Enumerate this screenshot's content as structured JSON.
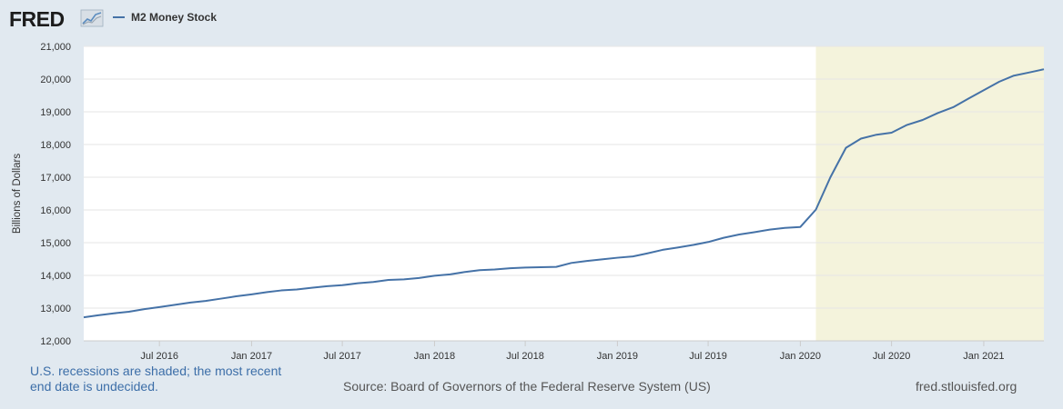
{
  "brand": {
    "logo_text": "FRED"
  },
  "colors": {
    "series": "#4572a7",
    "recession": "#f4f3dc",
    "background": "#e1e9f0",
    "plot": "#ffffff",
    "grid": "#e6e6e6"
  },
  "footer": {
    "note_line1": "U.S. recessions are shaded; the most recent",
    "note_line2": "end date is undecided.",
    "source": "Source: Board of Governors of the Federal Reserve System (US)",
    "site": "fred.stlouisfed.org"
  },
  "chart_data": {
    "type": "line",
    "title": "",
    "ylabel": "Billions of Dollars",
    "xlabel": "",
    "ylim": [
      12000,
      21000
    ],
    "xlim": [
      "2016-02-01",
      "2021-05-01"
    ],
    "yticks": [
      12000,
      13000,
      14000,
      15000,
      16000,
      17000,
      18000,
      19000,
      20000,
      21000
    ],
    "ytick_labels": [
      "12,000",
      "13,000",
      "14,000",
      "15,000",
      "16,000",
      "17,000",
      "18,000",
      "19,000",
      "20,000",
      "21,000"
    ],
    "xticks": [
      {
        "date": "2016-07-01",
        "label": "Jul 2016"
      },
      {
        "date": "2017-01-01",
        "label": "Jan 2017"
      },
      {
        "date": "2017-07-01",
        "label": "Jul 2017"
      },
      {
        "date": "2018-01-01",
        "label": "Jan 2018"
      },
      {
        "date": "2018-07-01",
        "label": "Jul 2018"
      },
      {
        "date": "2019-01-01",
        "label": "Jan 2019"
      },
      {
        "date": "2019-07-01",
        "label": "Jul 2019"
      },
      {
        "date": "2020-01-01",
        "label": "Jan 2020"
      },
      {
        "date": "2020-07-01",
        "label": "Jul 2020"
      },
      {
        "date": "2021-01-01",
        "label": "Jan 2021"
      }
    ],
    "grid": true,
    "legend_position": "top-left",
    "recessions": [
      {
        "start": "2020-02-01",
        "end": "2021-05-01"
      }
    ],
    "series": [
      {
        "name": "M2 Money Stock",
        "x": [
          "2016-02-01",
          "2016-03-01",
          "2016-04-01",
          "2016-05-01",
          "2016-06-01",
          "2016-07-01",
          "2016-08-01",
          "2016-09-01",
          "2016-10-01",
          "2016-11-01",
          "2016-12-01",
          "2017-01-01",
          "2017-02-01",
          "2017-03-01",
          "2017-04-01",
          "2017-05-01",
          "2017-06-01",
          "2017-07-01",
          "2017-08-01",
          "2017-09-01",
          "2017-10-01",
          "2017-11-01",
          "2017-12-01",
          "2018-01-01",
          "2018-02-01",
          "2018-03-01",
          "2018-04-01",
          "2018-05-01",
          "2018-06-01",
          "2018-07-01",
          "2018-08-01",
          "2018-09-01",
          "2018-10-01",
          "2018-11-01",
          "2018-12-01",
          "2019-01-01",
          "2019-02-01",
          "2019-03-01",
          "2019-04-01",
          "2019-05-01",
          "2019-06-01",
          "2019-07-01",
          "2019-08-01",
          "2019-09-01",
          "2019-10-01",
          "2019-11-01",
          "2019-12-01",
          "2020-01-01",
          "2020-02-01",
          "2020-03-01",
          "2020-04-01",
          "2020-05-01",
          "2020-06-01",
          "2020-07-01",
          "2020-08-01",
          "2020-09-01",
          "2020-10-01",
          "2020-11-01",
          "2020-12-01",
          "2021-01-01",
          "2021-02-01",
          "2021-03-01",
          "2021-04-01",
          "2021-05-01"
        ],
        "values": [
          12720,
          12780,
          12840,
          12890,
          12970,
          13030,
          13100,
          13170,
          13220,
          13290,
          13360,
          13420,
          13490,
          13540,
          13570,
          13620,
          13670,
          13700,
          13760,
          13800,
          13860,
          13880,
          13920,
          13990,
          14030,
          14100,
          14160,
          14180,
          14220,
          14240,
          14250,
          14260,
          14380,
          14440,
          14490,
          14540,
          14580,
          14670,
          14780,
          14850,
          14930,
          15020,
          15150,
          15250,
          15320,
          15400,
          15450,
          15480,
          16010,
          17000,
          17900,
          18180,
          18300,
          18360,
          18600,
          18750,
          18960,
          19140,
          19400,
          19660,
          19920,
          20100,
          20200,
          20300
        ]
      }
    ]
  }
}
